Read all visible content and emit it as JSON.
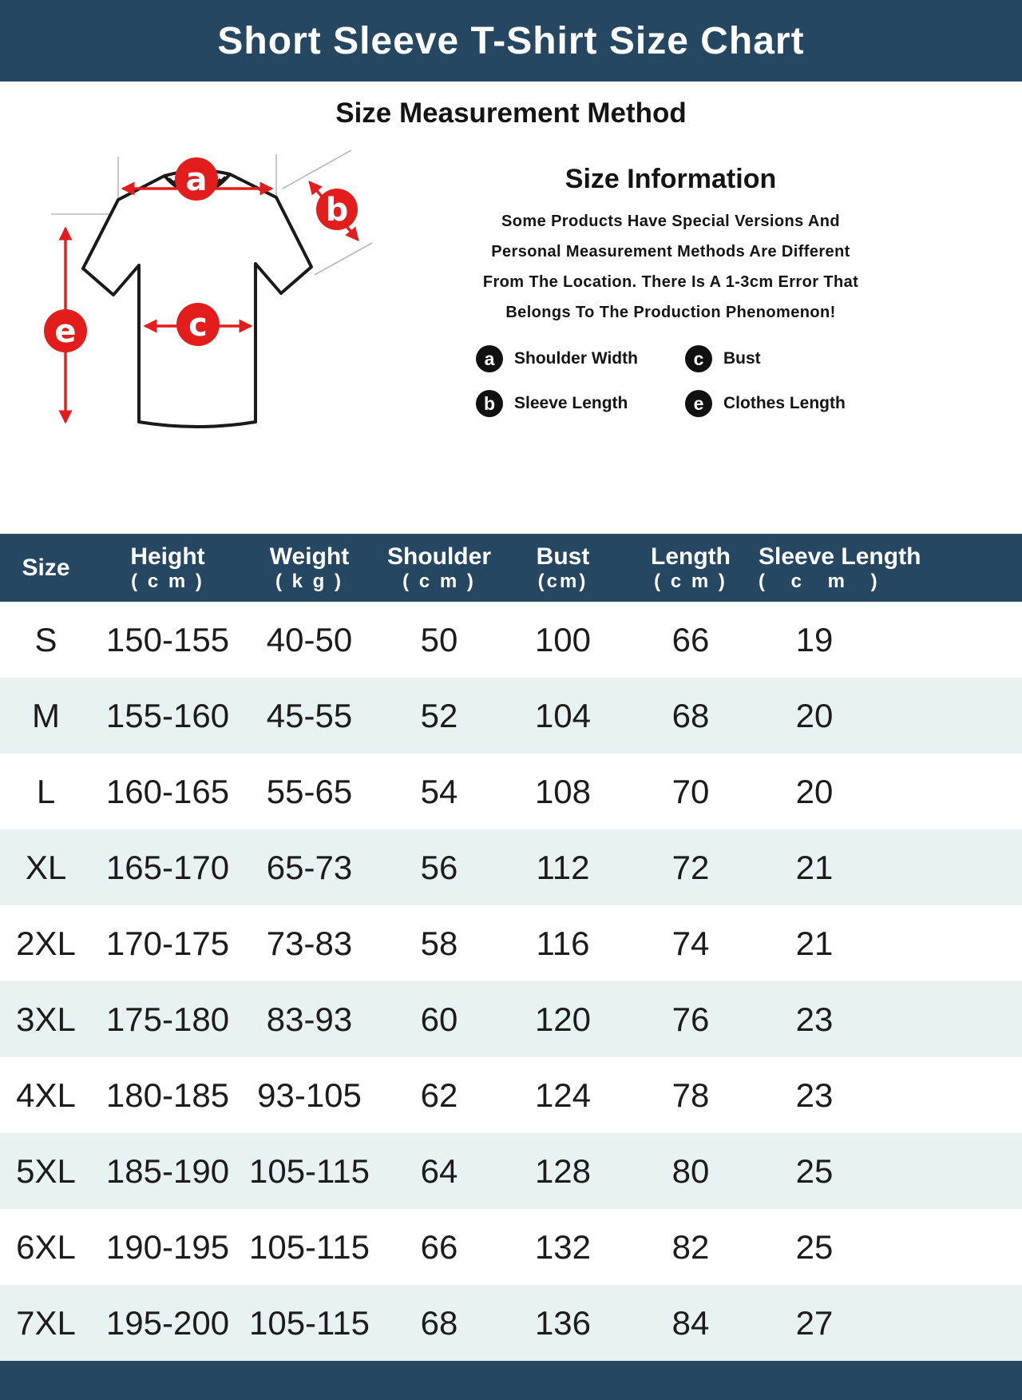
{
  "colors": {
    "navy": "#254761",
    "row_alt": "#e9f2f2",
    "red": "#e31c1c",
    "badge_black": "#111111"
  },
  "title": "Short Sleeve T-Shirt Size Chart",
  "section_title": "Size Measurement Method",
  "diagram": {
    "markers": {
      "a": "a",
      "b": "b",
      "c": "c",
      "e": "e"
    }
  },
  "info": {
    "title": "Size Information",
    "lines": [
      "Some Products Have Special Versions And",
      "Personal Measurement Methods Are Different",
      "From The Location. There Is A 1-3cm Error That",
      "Belongs To The Production Phenomenon!"
    ],
    "legend": [
      {
        "key": "a",
        "label": "Shoulder Width"
      },
      {
        "key": "c",
        "label": "Bust"
      },
      {
        "key": "b",
        "label": "Sleeve Length"
      },
      {
        "key": "e",
        "label": "Clothes Length"
      }
    ]
  },
  "table": {
    "column_keys": [
      "size",
      "height",
      "weight",
      "shoulder",
      "bust",
      "length",
      "sleeve-length"
    ],
    "headers": [
      {
        "line1": "Size",
        "line2": ""
      },
      {
        "line1": "Height",
        "line2": "( c m )"
      },
      {
        "line1": "Weight",
        "line2": "( k g )"
      },
      {
        "line1": "Shoulder",
        "line2": "( c m )"
      },
      {
        "line1": "Bust",
        "line2": "(cm)"
      },
      {
        "line1": "Length",
        "line2": "( c m )"
      },
      {
        "line1": "Sleeve Length",
        "line2": "( c m )"
      }
    ],
    "rows": [
      [
        "S",
        "150-155",
        "40-50",
        "50",
        "100",
        "66",
        "19"
      ],
      [
        "M",
        "155-160",
        "45-55",
        "52",
        "104",
        "68",
        "20"
      ],
      [
        "L",
        "160-165",
        "55-65",
        "54",
        "108",
        "70",
        "20"
      ],
      [
        "XL",
        "165-170",
        "65-73",
        "56",
        "112",
        "72",
        "21"
      ],
      [
        "2XL",
        "170-175",
        "73-83",
        "58",
        "116",
        "74",
        "21"
      ],
      [
        "3XL",
        "175-180",
        "83-93",
        "60",
        "120",
        "76",
        "23"
      ],
      [
        "4XL",
        "180-185",
        "93-105",
        "62",
        "124",
        "78",
        "23"
      ],
      [
        "5XL",
        "185-190",
        "105-115",
        "64",
        "128",
        "80",
        "25"
      ],
      [
        "6XL",
        "190-195",
        "105-115",
        "66",
        "132",
        "82",
        "25"
      ],
      [
        "7XL",
        "195-200",
        "105-115",
        "68",
        "136",
        "84",
        "27"
      ]
    ]
  }
}
